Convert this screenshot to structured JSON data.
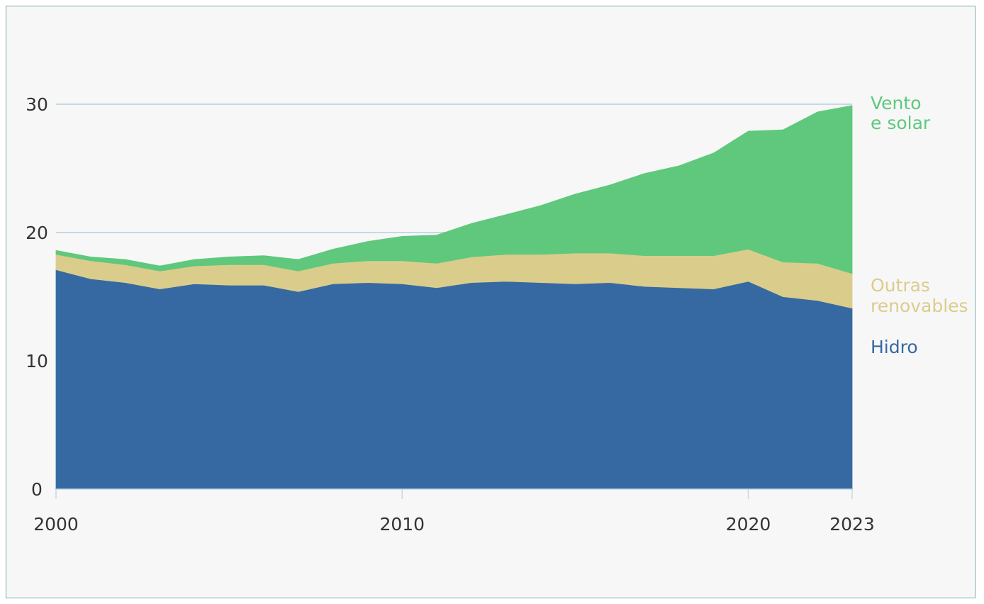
{
  "chart_data": {
    "type": "area",
    "stacked": true,
    "title": "",
    "xlabel": "",
    "ylabel": "",
    "xlim": [
      2000,
      2023
    ],
    "ylim": [
      0,
      35
    ],
    "x_ticks": [
      "2000",
      "2010",
      "2020",
      "2023"
    ],
    "y_ticks": [
      "0",
      "10",
      "20",
      "30"
    ],
    "x": [
      2000,
      2001,
      2002,
      2003,
      2004,
      2005,
      2006,
      2007,
      2008,
      2009,
      2010,
      2011,
      2012,
      2013,
      2014,
      2015,
      2016,
      2017,
      2018,
      2019,
      2020,
      2021,
      2022,
      2023
    ],
    "series": [
      {
        "name": "Hidro",
        "color": "#3669a2",
        "values": [
          17.1,
          16.4,
          16.1,
          15.6,
          16.0,
          15.9,
          15.9,
          15.4,
          16.0,
          16.1,
          16.0,
          15.7,
          16.1,
          16.2,
          16.1,
          16.0,
          16.1,
          15.8,
          15.7,
          15.6,
          16.2,
          15.0,
          14.7,
          14.1
        ]
      },
      {
        "name": "Outras renovables",
        "label_lines": [
          "Outras",
          "renovables"
        ],
        "color": "#dacd8c",
        "values": [
          1.2,
          1.4,
          1.4,
          1.4,
          1.4,
          1.6,
          1.6,
          1.6,
          1.6,
          1.7,
          1.8,
          1.9,
          2.0,
          2.1,
          2.2,
          2.4,
          2.3,
          2.4,
          2.5,
          2.6,
          2.5,
          2.7,
          2.9,
          2.7
        ]
      },
      {
        "name": "Vento e solar",
        "label_lines": [
          "Vento",
          "e solar"
        ],
        "color": "#5fc87c",
        "values": [
          0.3,
          0.3,
          0.4,
          0.4,
          0.5,
          0.6,
          0.7,
          0.9,
          1.1,
          1.5,
          1.9,
          2.2,
          2.6,
          3.1,
          3.8,
          4.6,
          5.3,
          6.4,
          7.0,
          8.0,
          9.2,
          10.3,
          11.8,
          13.1
        ]
      }
    ],
    "grid": {
      "y_lines": [
        20,
        30
      ],
      "color": "#c5d8e6"
    }
  }
}
